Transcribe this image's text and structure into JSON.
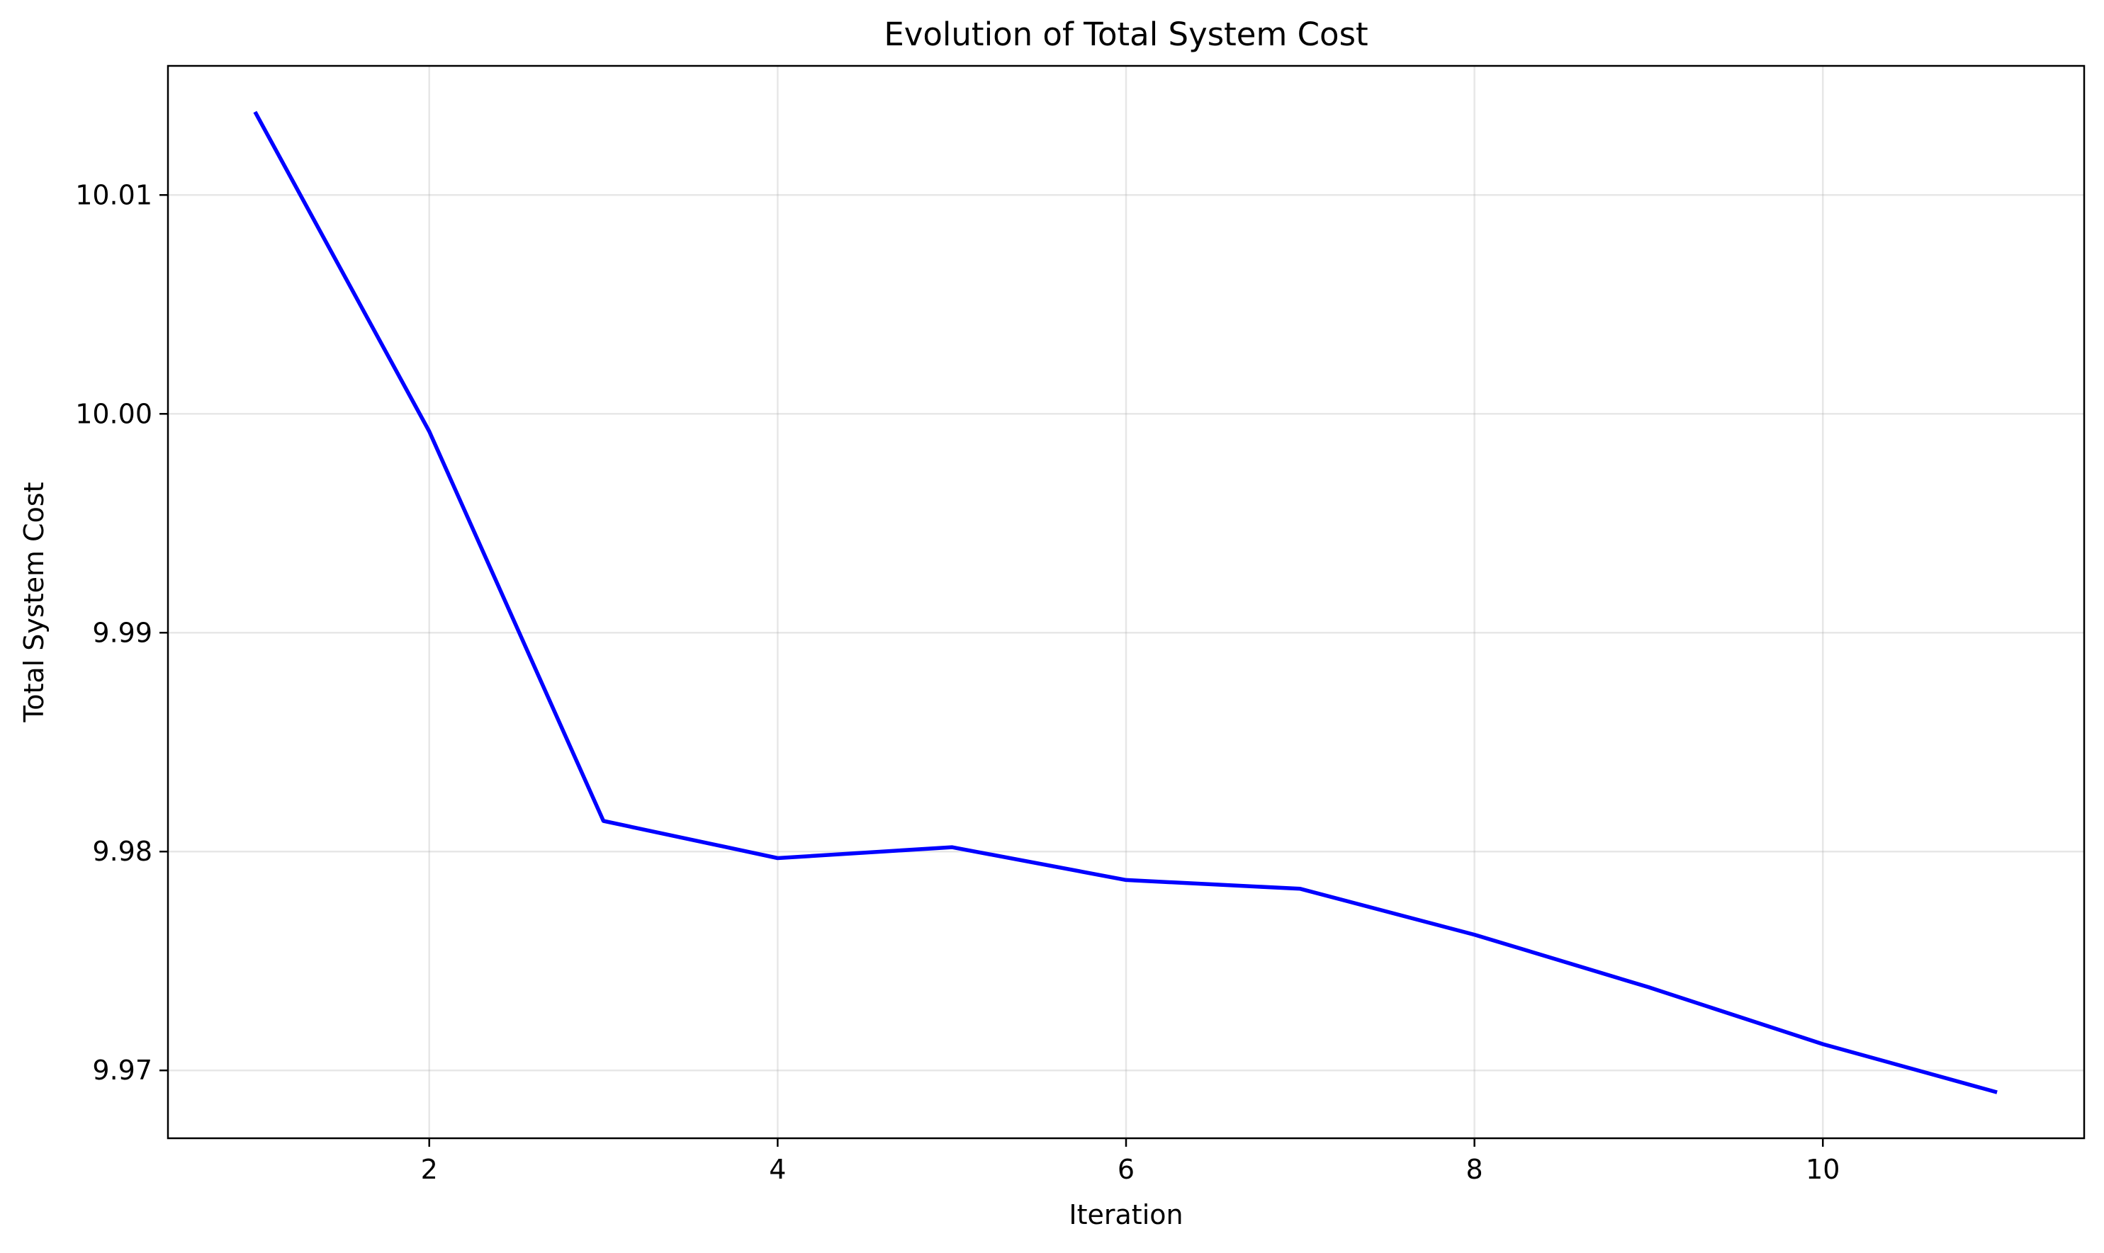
{
  "chart_data": {
    "type": "line",
    "title": "Evolution of Total System Cost",
    "xlabel": "Iteration",
    "ylabel": "Total System Cost",
    "xlim": [
      0.5,
      11.5
    ],
    "ylim": [
      9.9669,
      10.0159
    ],
    "x_ticks": [
      2,
      4,
      6,
      8,
      10
    ],
    "x_tick_labels": [
      "2",
      "4",
      "6",
      "8",
      "10"
    ],
    "y_ticks": [
      9.97,
      9.98,
      9.99,
      10.0,
      10.01
    ],
    "y_tick_labels": [
      "9.97",
      "9.98",
      "9.99",
      "10.00",
      "10.01"
    ],
    "grid": true,
    "legend": "none",
    "series": [
      {
        "color": "#0000ff",
        "x": [
          1,
          2,
          3,
          4,
          5,
          6,
          7,
          8,
          9,
          10,
          11
        ],
        "y": [
          10.0138,
          9.9992,
          9.9814,
          9.9797,
          9.9802,
          9.9787,
          9.9783,
          9.9762,
          9.9738,
          9.9712,
          9.969
        ]
      }
    ]
  }
}
